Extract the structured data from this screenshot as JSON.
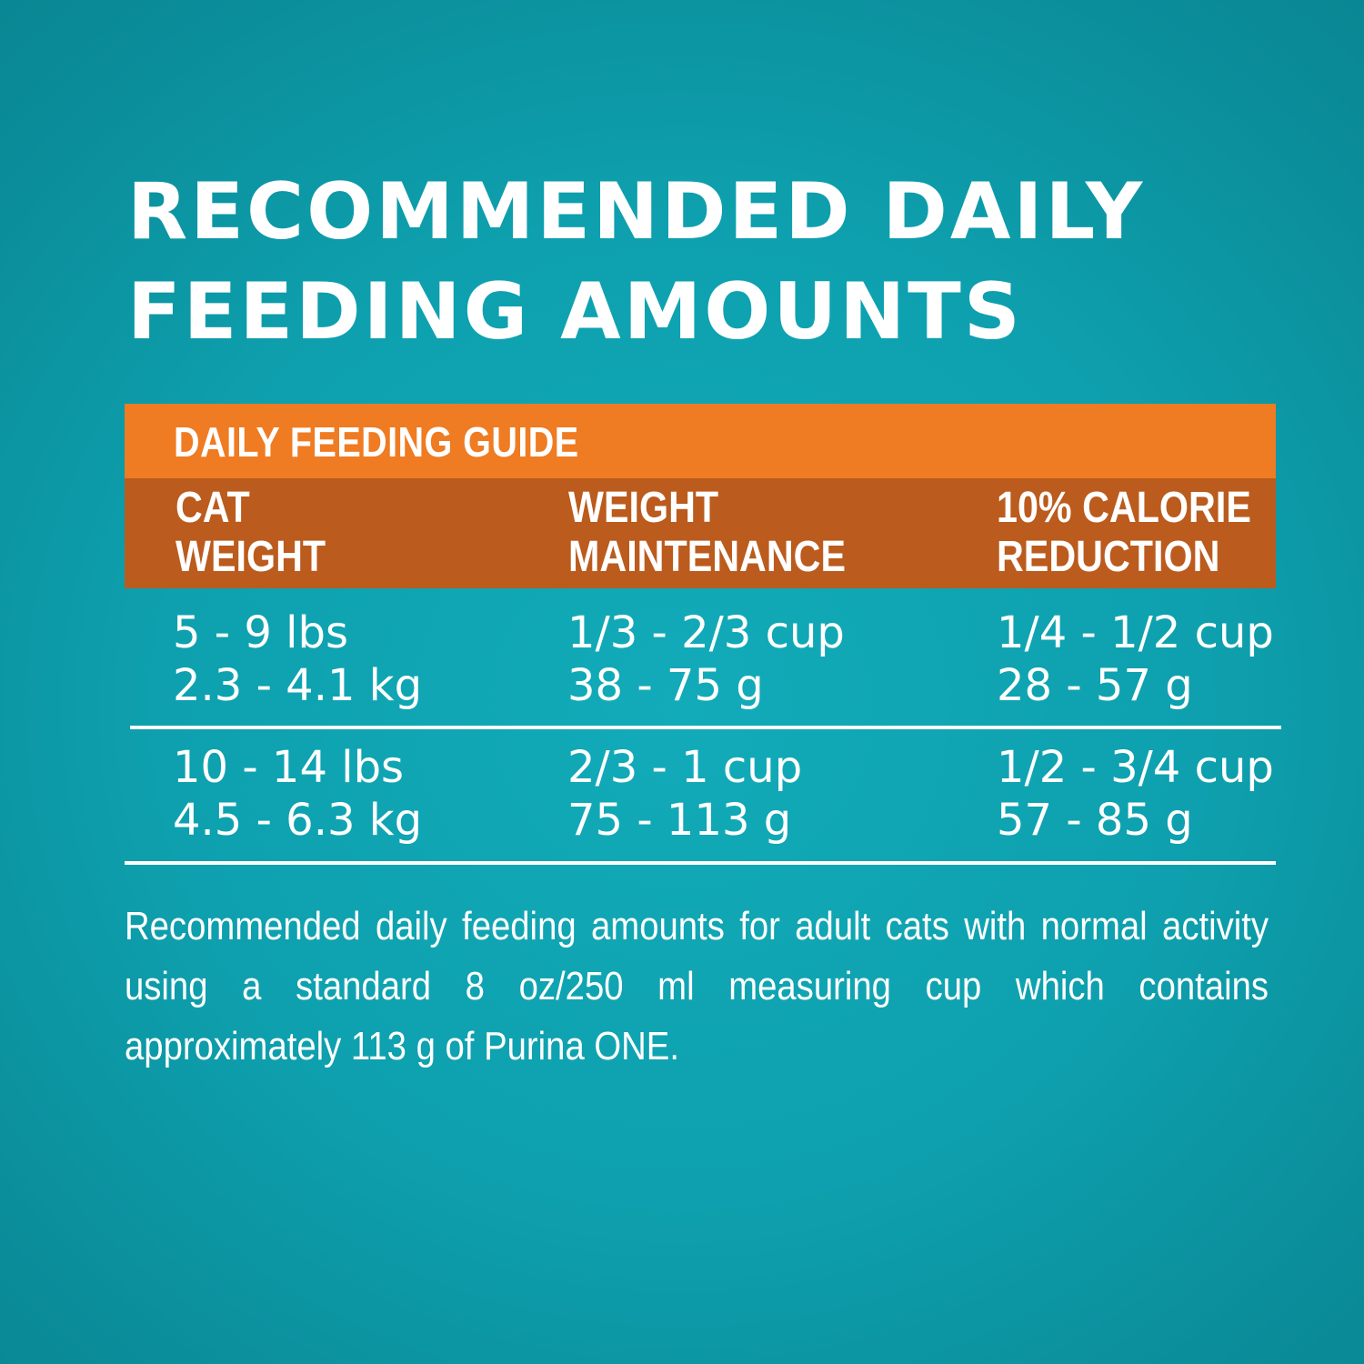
{
  "title": {
    "line1": "RECOMMENDED DAILY",
    "line2": "FEEDING AMOUNTS"
  },
  "table": {
    "guide_label": "DAILY FEEDING GUIDE",
    "headers": [
      {
        "line1": "CAT",
        "line2": "WEIGHT"
      },
      {
        "line1": "WEIGHT",
        "line2": "MAINTENANCE"
      },
      {
        "line1": "10% CALORIE",
        "line2": "REDUCTION"
      }
    ],
    "rows": [
      {
        "cat_weight": {
          "lbs": "5 - 9 lbs",
          "kg": "2.3 - 4.1 kg"
        },
        "maintenance": {
          "cup": "1/3 - 2/3 cup",
          "grams": "38 - 75 g"
        },
        "reduction": {
          "cup": "1/4 - 1/2 cup",
          "grams": "28 - 57 g"
        }
      },
      {
        "cat_weight": {
          "lbs": "10 - 14 lbs",
          "kg": "4.5 - 6.3 kg"
        },
        "maintenance": {
          "cup": "2/3 - 1 cup",
          "grams": "75 - 113 g"
        },
        "reduction": {
          "cup": "1/2 - 3/4 cup",
          "grams": "57 - 85 g"
        }
      }
    ]
  },
  "footnote": "Recommended daily feeding amounts for adult cats with normal activity using a standard 8 oz/250 ml measuring cup which contains approximately 113 g of Purina ONE.",
  "colors": {
    "background": "#0ea0ae",
    "guide_bar": "#ef7b22",
    "header_bar": "#bb5b1d",
    "text": "#ffffff"
  }
}
